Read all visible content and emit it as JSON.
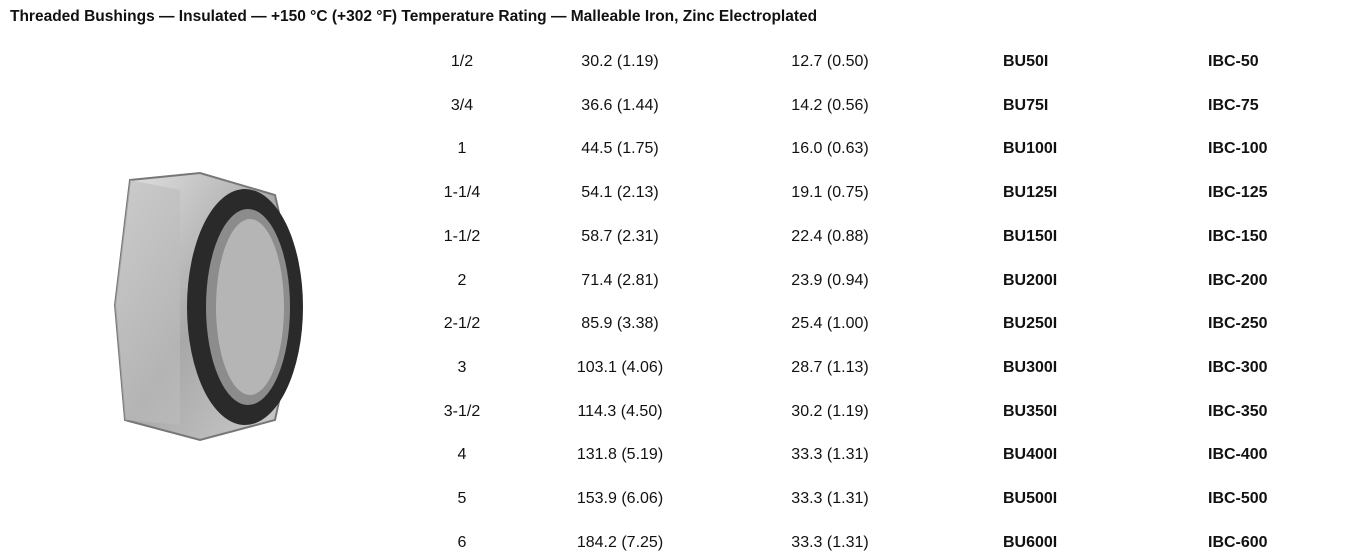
{
  "title": "Threaded Bushings — Insulated — +150 °C (+302 °F) Temperature Rating — Malleable Iron, Zinc Electroplated",
  "table": {
    "rows": [
      [
        "1/2",
        "30.2 (1.19)",
        "12.7 (0.50)",
        "BU50I",
        "IBC-50"
      ],
      [
        "3/4",
        "36.6 (1.44)",
        "14.2 (0.56)",
        "BU75I",
        "IBC-75"
      ],
      [
        "1",
        "44.5 (1.75)",
        "16.0 (0.63)",
        "BU100I",
        "IBC-100"
      ],
      [
        "1-1/4",
        "54.1 (2.13)",
        "19.1 (0.75)",
        "BU125I",
        "IBC-125"
      ],
      [
        "1-1/2",
        "58.7 (2.31)",
        "22.4 (0.88)",
        "BU150I",
        "IBC-150"
      ],
      [
        "2",
        "71.4 (2.81)",
        "23.9 (0.94)",
        "BU200I",
        "IBC-200"
      ],
      [
        "2-1/2",
        "85.9 (3.38)",
        "25.4 (1.00)",
        "BU250I",
        "IBC-250"
      ],
      [
        "3",
        "103.1 (4.06)",
        "28.7 (1.13)",
        "BU300I",
        "IBC-300"
      ],
      [
        "3-1/2",
        "114.3 (4.50)",
        "30.2 (1.19)",
        "BU350I",
        "IBC-350"
      ],
      [
        "4",
        "131.8 (5.19)",
        "33.3 (1.31)",
        "BU400I",
        "IBC-400"
      ],
      [
        "5",
        "153.9 (6.06)",
        "33.3 (1.31)",
        "BU500I",
        "IBC-500"
      ],
      [
        "6",
        "184.2 (7.25)",
        "33.3 (1.31)",
        "BU600I",
        "IBC-600"
      ]
    ]
  }
}
